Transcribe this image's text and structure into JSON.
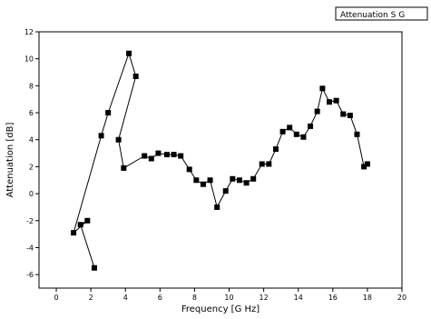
{
  "chart_data": {
    "type": "line",
    "xlabel": "Frequency [G Hz]",
    "ylabel": "Attenuation [dB]",
    "xlim": [
      -1,
      20
    ],
    "ylim": [
      -7,
      12
    ],
    "xticks": [
      0,
      2,
      4,
      6,
      8,
      10,
      12,
      14,
      16,
      18,
      20
    ],
    "yticks": [
      -6,
      -4,
      -2,
      0,
      2,
      4,
      6,
      8,
      10,
      12
    ],
    "grid": false,
    "legend_position": "top-right",
    "series": [
      {
        "name": "Attenuation S G",
        "color": "#000000",
        "marker": "square",
        "points": [
          [
            2.2,
            -5.5
          ],
          [
            1.4,
            -2.3
          ],
          [
            1.8,
            -2.0
          ],
          [
            1.0,
            -2.9
          ],
          [
            2.6,
            4.3
          ],
          [
            3.0,
            6.0
          ],
          [
            4.2,
            10.4
          ],
          [
            4.6,
            8.7
          ],
          [
            3.6,
            4.0
          ],
          [
            3.9,
            1.9
          ],
          [
            5.1,
            2.8
          ],
          [
            5.5,
            2.6
          ],
          [
            5.9,
            3.0
          ],
          [
            6.4,
            2.9
          ],
          [
            6.8,
            2.9
          ],
          [
            7.2,
            2.8
          ],
          [
            7.7,
            1.8
          ],
          [
            8.1,
            1.0
          ],
          [
            8.5,
            0.7
          ],
          [
            8.9,
            1.0
          ],
          [
            9.3,
            -1.0
          ],
          [
            9.8,
            0.2
          ],
          [
            10.2,
            1.1
          ],
          [
            10.6,
            1.0
          ],
          [
            11.0,
            0.8
          ],
          [
            11.4,
            1.1
          ],
          [
            11.9,
            2.2
          ],
          [
            12.3,
            2.2
          ],
          [
            12.7,
            3.3
          ],
          [
            13.1,
            4.6
          ],
          [
            13.5,
            4.9
          ],
          [
            13.9,
            4.4
          ],
          [
            14.3,
            4.2
          ],
          [
            14.7,
            5.0
          ],
          [
            15.1,
            6.1
          ],
          [
            15.4,
            7.8
          ],
          [
            15.8,
            6.8
          ],
          [
            16.2,
            6.9
          ],
          [
            16.6,
            5.9
          ],
          [
            17.0,
            5.8
          ],
          [
            17.4,
            4.4
          ],
          [
            17.8,
            2.0
          ],
          [
            18.0,
            2.2
          ]
        ]
      }
    ]
  }
}
